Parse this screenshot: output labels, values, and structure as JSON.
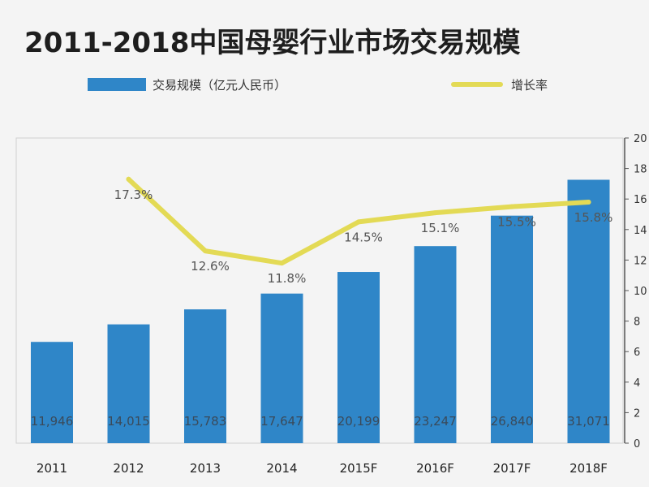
{
  "chart_data": {
    "type": "bar",
    "title": "2011-2018中国母婴行业市场交易规模",
    "categories": [
      "2011",
      "2012",
      "2013",
      "2014",
      "2015F",
      "2016F",
      "2017F",
      "2018F"
    ],
    "series": [
      {
        "name": "交易规模（亿元人民币）",
        "type": "bar",
        "axis": "left",
        "values": [
          11946,
          14015,
          15783,
          17647,
          20199,
          23247,
          26840,
          31071
        ],
        "labels": [
          "11,946",
          "14,015",
          "15,783",
          "17,647",
          "20,199",
          "23,247",
          "26,840",
          "31,071"
        ]
      },
      {
        "name": "增长率",
        "type": "line",
        "axis": "right",
        "values": [
          null,
          17.3,
          12.6,
          11.8,
          14.5,
          15.1,
          15.5,
          15.8
        ],
        "labels": [
          "",
          "17.3%",
          "12.6%",
          "11.8%",
          "14.5%",
          "15.1%",
          "15.5%",
          "15.8%"
        ]
      }
    ],
    "right_axis": {
      "ticks": [
        "0",
        "2",
        "4",
        "6",
        "8",
        "10",
        "12",
        "14",
        "16",
        "18",
        "20"
      ],
      "ylim": [
        0,
        20
      ]
    },
    "left_axis": {
      "ylim": [
        0,
        36000
      ]
    },
    "legend_placement": "top",
    "grid": false,
    "colors": {
      "bar": "#2f86c8",
      "line": "#e3da55"
    }
  }
}
